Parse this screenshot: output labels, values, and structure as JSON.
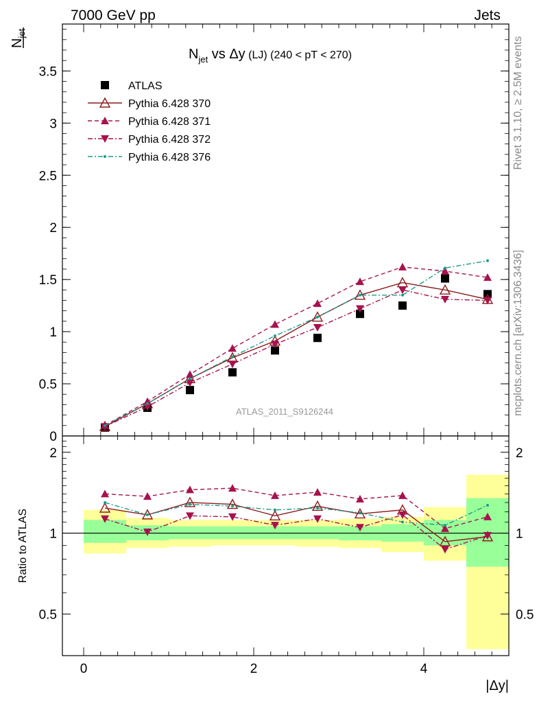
{
  "header": {
    "left": "7000 GeV pp",
    "right": "Jets"
  },
  "side_texts": {
    "rivet": "Rivet 3.1.10, ≥ 2.5M events",
    "mcplots": "mcplots.cern.ch [arXiv:1306.3436]"
  },
  "chart_data": [
    {
      "type": "scatter",
      "title": {
        "n": "N",
        "n_sub": "jet",
        "vs": " vs ",
        "dy": "Δy",
        "lj": " (LJ)",
        "range": " (240 < pT < 270)"
      },
      "ylabel": {
        "main": "N",
        "sub": "jet"
      },
      "analysis_label": "ATLAS_2011_S9126244",
      "xlim": [
        -0.25,
        5.0
      ],
      "ylim": [
        0,
        3.95
      ],
      "yticks": [
        0,
        0.5,
        1,
        1.5,
        2,
        2.5,
        3,
        3.5
      ],
      "ytick_labels": [
        "0",
        "0.5",
        "1",
        "1.5",
        "2",
        "2.5",
        "3",
        "3.5"
      ],
      "x": [
        0.25,
        0.75,
        1.25,
        1.75,
        2.25,
        2.75,
        3.25,
        3.75,
        4.25,
        4.75
      ],
      "legend_position": "top-left",
      "series": [
        {
          "name": "ATLAS",
          "color": "#000000",
          "marker": "square",
          "line": "none",
          "values": [
            0.08,
            0.27,
            0.44,
            0.61,
            0.82,
            0.94,
            1.17,
            1.25,
            1.51,
            1.36
          ]
        },
        {
          "name": "Pythia 6.428 370",
          "color": "#8b1a1a",
          "marker": "open-triangle",
          "line": "solid",
          "values": [
            0.09,
            0.31,
            0.55,
            0.75,
            0.91,
            1.14,
            1.35,
            1.47,
            1.4,
            1.31
          ]
        },
        {
          "name": "Pythia 6.428 371",
          "color": "#a6124e",
          "marker": "triangle-up",
          "line": "dashed",
          "values": [
            0.1,
            0.33,
            0.59,
            0.84,
            1.07,
            1.27,
            1.48,
            1.62,
            1.58,
            1.52
          ]
        },
        {
          "name": "Pythia 6.428 372",
          "color": "#a6124e",
          "marker": "triangle-down",
          "line": "dashdot",
          "values": [
            0.09,
            0.28,
            0.51,
            0.69,
            0.88,
            1.04,
            1.22,
            1.4,
            1.31,
            1.3
          ]
        },
        {
          "name": "Pythia 6.428 376",
          "color": "#1a9a88",
          "marker": "dot",
          "line": "dashdot",
          "values": [
            0.1,
            0.31,
            0.55,
            0.76,
            0.96,
            1.14,
            1.35,
            1.35,
            1.61,
            1.68
          ]
        }
      ]
    },
    {
      "type": "scatter",
      "ylabel": "Ratio to ATLAS",
      "xlabel": "|Δy|",
      "xlim": [
        -0.25,
        5.0
      ],
      "xticks": [
        0,
        2,
        4
      ],
      "xtick_labels": [
        "0",
        "2",
        "4"
      ],
      "ylim": [
        0.35,
        2.3
      ],
      "yticks": [
        0.5,
        1,
        2
      ],
      "ytick_labels": [
        "0.5",
        "1",
        "2"
      ],
      "ytick_labels_right": [
        "0.5",
        "1",
        "2"
      ],
      "x": [
        0.25,
        0.75,
        1.25,
        1.75,
        2.25,
        2.75,
        3.25,
        3.75,
        4.25,
        4.75
      ],
      "bands": {
        "yellow_color": "#ffff99",
        "green_color": "#99ff99",
        "yellow": [
          [
            0.84,
            1.22
          ],
          [
            0.88,
            1.14
          ],
          [
            0.89,
            1.12
          ],
          [
            0.9,
            1.12
          ],
          [
            0.9,
            1.12
          ],
          [
            0.89,
            1.12
          ],
          [
            0.88,
            1.13
          ],
          [
            0.85,
            1.15
          ],
          [
            0.79,
            1.25
          ],
          [
            0.37,
            1.65
          ]
        ],
        "green": [
          [
            0.92,
            1.12
          ],
          [
            0.94,
            1.07
          ],
          [
            0.95,
            1.06
          ],
          [
            0.95,
            1.06
          ],
          [
            0.95,
            1.06
          ],
          [
            0.95,
            1.06
          ],
          [
            0.94,
            1.06
          ],
          [
            0.93,
            1.08
          ],
          [
            0.9,
            1.12
          ],
          [
            0.75,
            1.35
          ]
        ]
      },
      "series": [
        {
          "name": "Pythia 6.428 370",
          "values": [
            1.24,
            1.17,
            1.3,
            1.28,
            1.16,
            1.26,
            1.18,
            1.22,
            0.93,
            0.97
          ]
        },
        {
          "name": "Pythia 6.428 371",
          "values": [
            1.4,
            1.37,
            1.45,
            1.47,
            1.38,
            1.42,
            1.34,
            1.38,
            1.04,
            1.15
          ]
        },
        {
          "name": "Pythia 6.428 372",
          "values": [
            1.13,
            1.01,
            1.16,
            1.15,
            1.07,
            1.13,
            1.05,
            1.17,
            0.87,
            0.98
          ]
        },
        {
          "name": "Pythia 6.428 376",
          "values": [
            1.3,
            1.17,
            1.28,
            1.26,
            1.22,
            1.24,
            1.19,
            1.1,
            1.07,
            1.27
          ]
        }
      ]
    }
  ]
}
